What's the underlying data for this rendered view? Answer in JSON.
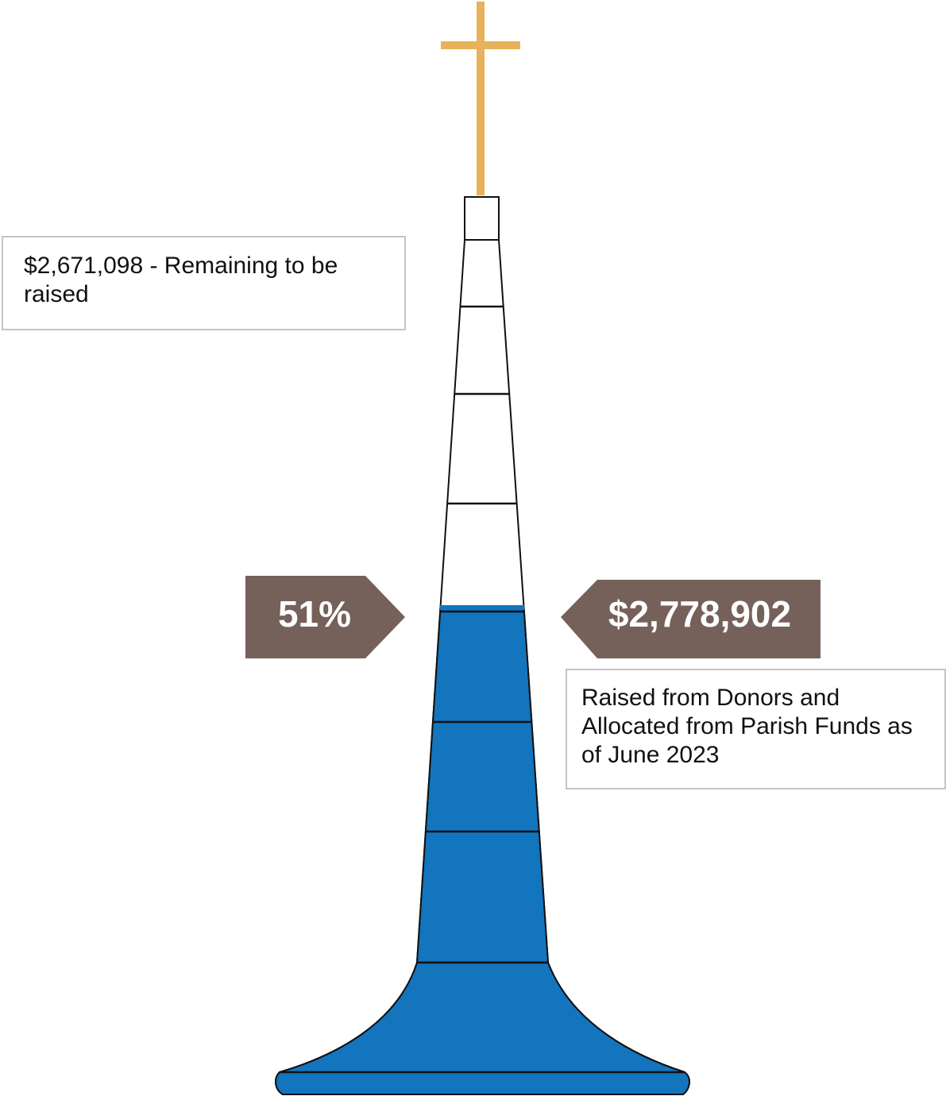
{
  "remaining_box": {
    "text": "$2,671,098 - Remaining to be raised"
  },
  "percent_badge": {
    "text": "51%"
  },
  "raised_badge": {
    "text": "$2,778,902"
  },
  "raised_box": {
    "text": "Raised from Donors and Allocated from Parish Funds as of June 2023"
  }
}
